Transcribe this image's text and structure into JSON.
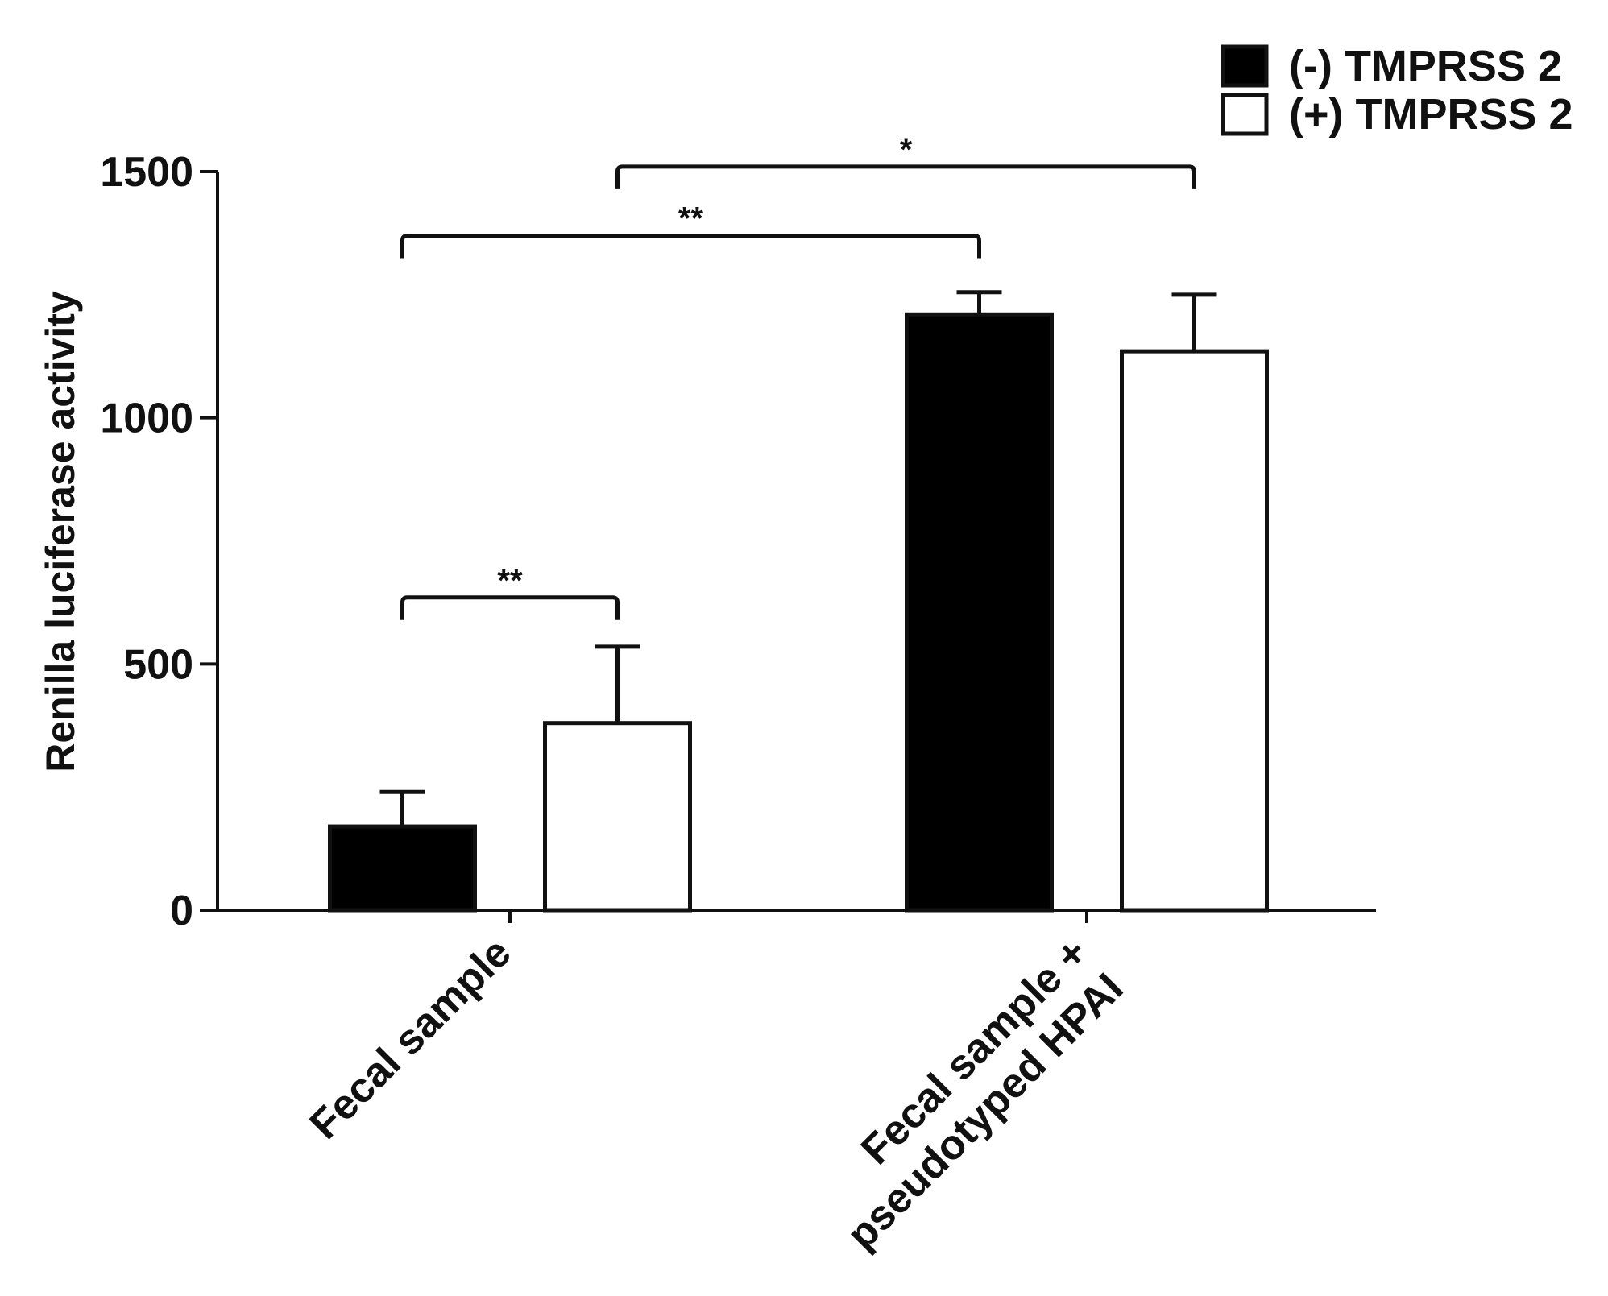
{
  "chart_data": {
    "type": "bar",
    "title": "",
    "xlabel": "",
    "ylabel": "Renilla luciferase activity",
    "ylim": [
      0,
      1500
    ],
    "yticks": [
      "0",
      "500",
      "1000",
      "1500"
    ],
    "categories": [
      {
        "lines": [
          "Fecal sample"
        ]
      },
      {
        "lines": [
          "Fecal sample +",
          "pseudotyped HPAI"
        ]
      }
    ],
    "series": [
      {
        "name": "(-) TMPRSS 2",
        "fill": "#000000",
        "values": [
          170,
          1210
        ],
        "errors": [
          70,
          45
        ]
      },
      {
        "name": "(+) TMPRSS 2",
        "fill": "#ffffff",
        "values": [
          380,
          1135
        ],
        "errors": [
          155,
          115
        ]
      }
    ],
    "legend_position": "top-right",
    "significance": [
      {
        "label": "**",
        "from": {
          "category": 0,
          "series": 0
        },
        "to": {
          "category": 0,
          "series": 1
        },
        "y": 635
      },
      {
        "label": "**",
        "from": {
          "category": 0,
          "series": 0
        },
        "to": {
          "category": 1,
          "series": 0
        },
        "y": 1370
      },
      {
        "label": "*",
        "from": {
          "category": 0,
          "series": 1
        },
        "to": {
          "category": 1,
          "series": 1
        },
        "y": 1510
      }
    ]
  },
  "colors": {
    "axis": "#111111",
    "bar_outline": "#111111"
  }
}
